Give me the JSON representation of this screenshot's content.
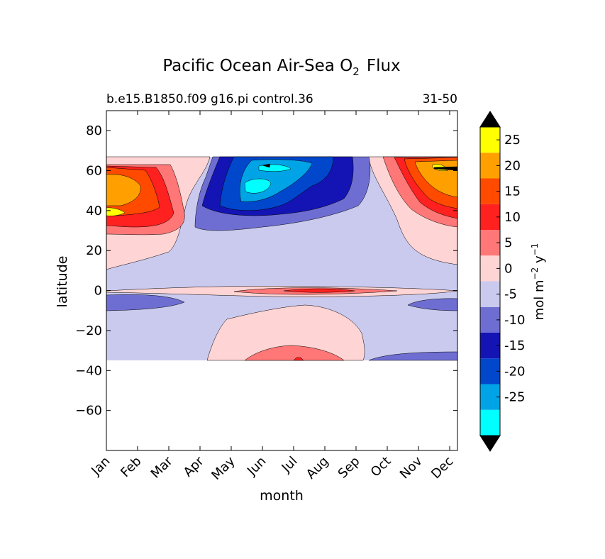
{
  "chart_data": {
    "type": "contour",
    "title_main": "Pacific Ocean Air-Sea O",
    "title_sub": "2",
    "title_tail": "Flux",
    "subtitle_left": "b.e15.B1850.f09 g16.pi control.36",
    "subtitle_right": "31-50",
    "xlabel": "month",
    "ylabel": "latitude",
    "x_ticks": [
      "Jan",
      "Feb",
      "Mar",
      "Apr",
      "May",
      "Jun",
      "Jul",
      "Aug",
      "Sep",
      "Oct",
      "Nov",
      "Dec"
    ],
    "y_ticks": [
      80,
      60,
      40,
      20,
      0,
      -20,
      -40,
      -60
    ],
    "y_tick_labels": [
      "80",
      "60",
      "40",
      "20",
      "0",
      "−20",
      "−40",
      "−60"
    ],
    "xlim": [
      0,
      11.25
    ],
    "ylim": [
      -80,
      90
    ],
    "data_lat_range": [
      -34,
      67
    ],
    "colorbar_label": "mol m",
    "colorbar_label_exp1": "−2",
    "colorbar_label_mid": " y",
    "colorbar_label_exp2": "−1",
    "colorbar_levels": [
      -30,
      -25,
      -20,
      -15,
      -10,
      -5,
      0,
      5,
      10,
      15,
      20,
      25,
      30
    ],
    "colorbar_tick_labels": [
      "25",
      "20",
      "15",
      "10",
      "5",
      "0",
      "-5",
      "-10",
      "-15",
      "-20",
      "-25"
    ],
    "colorbar_tick_values": [
      25,
      20,
      15,
      10,
      5,
      0,
      -5,
      -10,
      -15,
      -20,
      -25
    ],
    "colorbar_extend": "both",
    "colors": [
      "#00ffff",
      "#00a4e6",
      "#0047cc",
      "#1414b4",
      "#6e6ed2",
      "#cacaee",
      "#ffd4d4",
      "#ff7777",
      "#ff2020",
      "#ff4a00",
      "#ffa000",
      "#ffff00"
    ],
    "extend_colors": {
      "over": "#000000",
      "under": "#000000"
    },
    "grid": false,
    "features": [
      {
        "name": "north-pacific-uptake-center",
        "month": 5.2,
        "lat": 55,
        "value": -27
      },
      {
        "name": "winter-outgassing-west",
        "month": 0.2,
        "lat": 50,
        "value": 22
      },
      {
        "name": "winter-outgassing-east",
        "month": 10.9,
        "lat": 50,
        "value": 22
      },
      {
        "name": "equatorial-outgassing",
        "month": 6.5,
        "lat": 0,
        "value": 11
      },
      {
        "name": "southern-subtropic-outgassing",
        "month": 6.0,
        "lat": -30,
        "value": 7
      },
      {
        "name": "equator-south-uptake-jan",
        "month": 0.5,
        "lat": -6,
        "value": -7
      },
      {
        "name": "equator-south-uptake-dec",
        "month": 10.7,
        "lat": -6,
        "value": -7
      }
    ]
  }
}
